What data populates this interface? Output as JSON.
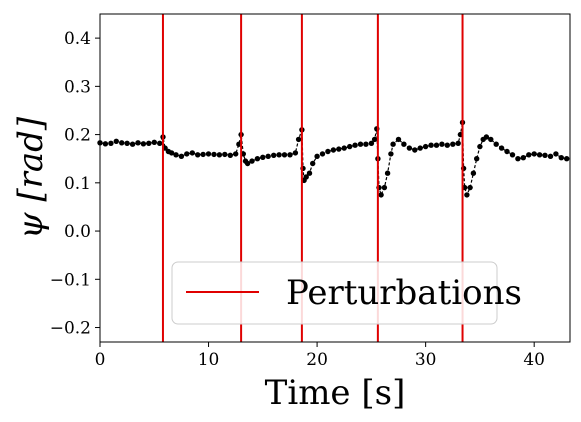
{
  "chart_data": {
    "type": "scatter",
    "title": "",
    "xlabel": "Time [s]",
    "ylabel": "ψ [rad]",
    "xlim": [
      0,
      43.3
    ],
    "ylim": [
      -0.23,
      0.45
    ],
    "xticks": [
      0,
      10,
      20,
      30,
      40
    ],
    "xtick_labels": [
      "0",
      "10",
      "20",
      "30",
      "40"
    ],
    "yticks": [
      -0.2,
      -0.1,
      0.0,
      0.1,
      0.2,
      0.3,
      0.4
    ],
    "ytick_labels": [
      "−0.2",
      "−0.1",
      "0.0",
      "0.1",
      "0.2",
      "0.3",
      "0.4"
    ],
    "grid": false,
    "legend": {
      "placement": "lower-center",
      "entries": [
        "Perturbations"
      ]
    },
    "perturbations": {
      "name": "Perturbations",
      "color": "#e00000",
      "x": [
        5.8,
        13.0,
        18.6,
        25.6,
        33.4
      ]
    },
    "series": [
      {
        "color": "#000000",
        "points": [
          [
            0.0,
            0.183
          ],
          [
            0.5,
            0.181
          ],
          [
            1.0,
            0.182
          ],
          [
            1.5,
            0.186
          ],
          [
            2.0,
            0.183
          ],
          [
            2.5,
            0.182
          ],
          [
            3.0,
            0.18
          ],
          [
            3.5,
            0.183
          ],
          [
            4.0,
            0.181
          ],
          [
            4.5,
            0.182
          ],
          [
            5.0,
            0.184
          ],
          [
            5.5,
            0.182
          ],
          [
            5.8,
            0.195
          ],
          [
            6.0,
            0.172
          ],
          [
            6.3,
            0.165
          ],
          [
            6.6,
            0.162
          ],
          [
            7.0,
            0.158
          ],
          [
            7.5,
            0.155
          ],
          [
            8.0,
            0.16
          ],
          [
            8.5,
            0.162
          ],
          [
            9.0,
            0.158
          ],
          [
            9.5,
            0.159
          ],
          [
            10.0,
            0.16
          ],
          [
            10.5,
            0.159
          ],
          [
            11.0,
            0.158
          ],
          [
            11.5,
            0.159
          ],
          [
            12.0,
            0.157
          ],
          [
            12.5,
            0.16
          ],
          [
            12.8,
            0.18
          ],
          [
            13.0,
            0.2
          ],
          [
            13.2,
            0.16
          ],
          [
            13.4,
            0.145
          ],
          [
            13.6,
            0.14
          ],
          [
            14.0,
            0.145
          ],
          [
            14.5,
            0.15
          ],
          [
            15.0,
            0.153
          ],
          [
            15.5,
            0.155
          ],
          [
            16.0,
            0.157
          ],
          [
            16.5,
            0.158
          ],
          [
            17.0,
            0.158
          ],
          [
            17.5,
            0.158
          ],
          [
            18.0,
            0.162
          ],
          [
            18.3,
            0.19
          ],
          [
            18.6,
            0.21
          ],
          [
            18.7,
            0.13
          ],
          [
            18.8,
            0.105
          ],
          [
            19.0,
            0.112
          ],
          [
            19.3,
            0.12
          ],
          [
            19.6,
            0.14
          ],
          [
            20.0,
            0.155
          ],
          [
            20.5,
            0.16
          ],
          [
            21.0,
            0.165
          ],
          [
            21.5,
            0.168
          ],
          [
            22.0,
            0.17
          ],
          [
            22.5,
            0.172
          ],
          [
            23.0,
            0.175
          ],
          [
            23.5,
            0.178
          ],
          [
            24.0,
            0.18
          ],
          [
            24.5,
            0.18
          ],
          [
            25.0,
            0.182
          ],
          [
            25.3,
            0.19
          ],
          [
            25.5,
            0.212
          ],
          [
            25.6,
            0.15
          ],
          [
            25.7,
            0.09
          ],
          [
            25.9,
            0.075
          ],
          [
            26.2,
            0.09
          ],
          [
            26.5,
            0.12
          ],
          [
            26.8,
            0.16
          ],
          [
            27.0,
            0.18
          ],
          [
            27.5,
            0.19
          ],
          [
            28.0,
            0.18
          ],
          [
            28.5,
            0.172
          ],
          [
            29.0,
            0.168
          ],
          [
            29.5,
            0.172
          ],
          [
            30.0,
            0.175
          ],
          [
            30.5,
            0.178
          ],
          [
            31.0,
            0.178
          ],
          [
            31.5,
            0.18
          ],
          [
            32.0,
            0.178
          ],
          [
            32.5,
            0.18
          ],
          [
            33.0,
            0.182
          ],
          [
            33.2,
            0.2
          ],
          [
            33.4,
            0.225
          ],
          [
            33.5,
            0.13
          ],
          [
            33.6,
            0.09
          ],
          [
            33.8,
            0.075
          ],
          [
            34.1,
            0.09
          ],
          [
            34.4,
            0.12
          ],
          [
            34.7,
            0.15
          ],
          [
            35.0,
            0.175
          ],
          [
            35.3,
            0.19
          ],
          [
            35.6,
            0.195
          ],
          [
            36.0,
            0.19
          ],
          [
            36.5,
            0.18
          ],
          [
            37.0,
            0.172
          ],
          [
            37.5,
            0.165
          ],
          [
            38.0,
            0.158
          ],
          [
            38.5,
            0.15
          ],
          [
            39.0,
            0.152
          ],
          [
            39.5,
            0.158
          ],
          [
            40.0,
            0.16
          ],
          [
            40.5,
            0.158
          ],
          [
            41.0,
            0.157
          ],
          [
            41.5,
            0.155
          ],
          [
            42.0,
            0.16
          ],
          [
            42.5,
            0.152
          ],
          [
            43.0,
            0.15
          ]
        ]
      }
    ]
  }
}
